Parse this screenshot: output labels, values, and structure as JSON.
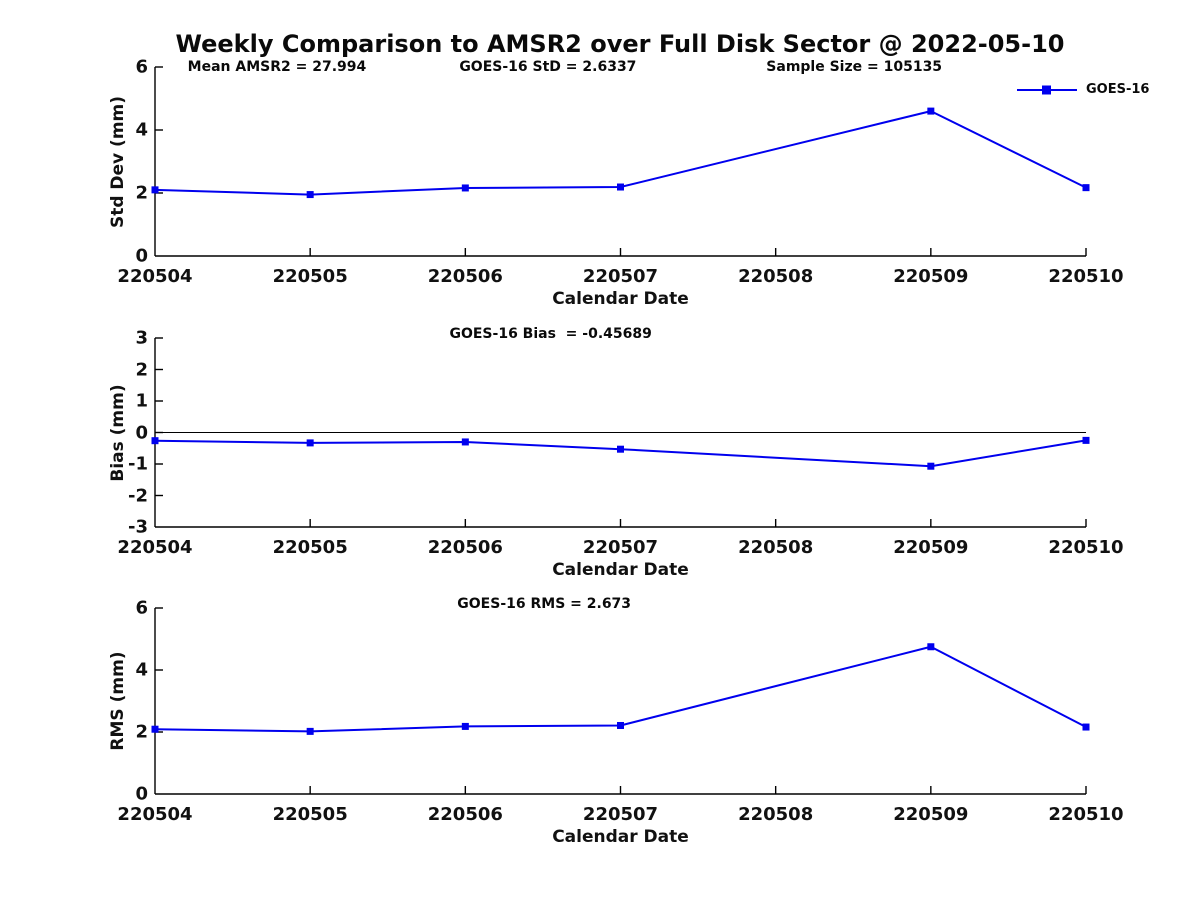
{
  "title": "Weekly Comparison to AMSR2 over Full Disk Sector @ 2022-05-10",
  "legend": {
    "label": "GOES-16"
  },
  "colors": {
    "line": "#0000EE",
    "axis": "#000000",
    "text": "#111111",
    "background": "#FFFFFF"
  },
  "stats": {
    "mean_amsr2": 27.994,
    "goes16_std": 2.6337,
    "sample_size": 105135,
    "goes16_bias": -0.45689,
    "goes16_rms": 2.673
  },
  "chart_data": [
    {
      "type": "line",
      "series_name": "GOES-16",
      "ylabel": "Std Dev (mm)",
      "xlabel": "Calendar Date",
      "annotations": [
        "Mean AMSR2 = 27.994",
        "GOES-16 StD = 2.6337",
        "Sample Size = 105135"
      ],
      "x": [
        220504,
        220505,
        220506,
        220507,
        220509,
        220510
      ],
      "y": [
        2.1,
        1.95,
        2.16,
        2.19,
        4.6,
        2.17
      ],
      "xlim": [
        220504,
        220510
      ],
      "ylim": [
        0,
        6
      ],
      "xticks": [
        220504,
        220505,
        220506,
        220507,
        220508,
        220509,
        220510
      ],
      "yticks": [
        0,
        2,
        4,
        6
      ],
      "zero_line": false,
      "grid": false,
      "marker": "square",
      "legend_position": "inside-top-right"
    },
    {
      "type": "line",
      "series_name": "GOES-16",
      "ylabel": "Bias (mm)",
      "xlabel": "Calendar Date",
      "annotations": [
        "GOES-16 Bias  = -0.45689"
      ],
      "x": [
        220504,
        220505,
        220506,
        220507,
        220509,
        220510
      ],
      "y": [
        -0.26,
        -0.33,
        -0.3,
        -0.53,
        -1.07,
        -0.25
      ],
      "xlim": [
        220504,
        220510
      ],
      "ylim": [
        -3,
        3
      ],
      "xticks": [
        220504,
        220505,
        220506,
        220507,
        220508,
        220509,
        220510
      ],
      "yticks": [
        -3,
        -2,
        -1,
        0,
        1,
        2,
        3
      ],
      "zero_line": true,
      "grid": false,
      "marker": "square",
      "legend_position": "none"
    },
    {
      "type": "line",
      "series_name": "GOES-16",
      "ylabel": "RMS (mm)",
      "xlabel": "Calendar Date",
      "annotations": [
        "GOES-16 RMS = 2.673"
      ],
      "x": [
        220504,
        220505,
        220506,
        220507,
        220509,
        220510
      ],
      "y": [
        2.09,
        2.02,
        2.18,
        2.21,
        4.75,
        2.16
      ],
      "xlim": [
        220504,
        220510
      ],
      "ylim": [
        0,
        6
      ],
      "xticks": [
        220504,
        220505,
        220506,
        220507,
        220508,
        220509,
        220510
      ],
      "yticks": [
        0,
        2,
        4,
        6
      ],
      "zero_line": false,
      "grid": false,
      "marker": "square",
      "legend_position": "none"
    }
  ]
}
